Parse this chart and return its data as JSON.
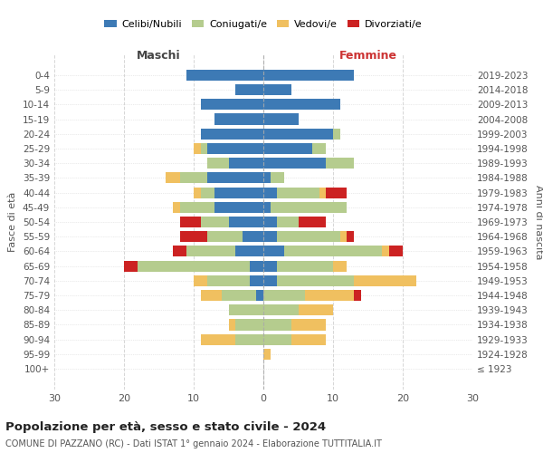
{
  "age_groups": [
    "100+",
    "95-99",
    "90-94",
    "85-89",
    "80-84",
    "75-79",
    "70-74",
    "65-69",
    "60-64",
    "55-59",
    "50-54",
    "45-49",
    "40-44",
    "35-39",
    "30-34",
    "25-29",
    "20-24",
    "15-19",
    "10-14",
    "5-9",
    "0-4"
  ],
  "birth_years": [
    "≤ 1923",
    "1924-1928",
    "1929-1933",
    "1934-1938",
    "1939-1943",
    "1944-1948",
    "1949-1953",
    "1954-1958",
    "1959-1963",
    "1964-1968",
    "1969-1973",
    "1974-1978",
    "1979-1983",
    "1984-1988",
    "1989-1993",
    "1994-1998",
    "1999-2003",
    "2004-2008",
    "2009-2013",
    "2014-2018",
    "2019-2023"
  ],
  "male": {
    "celibi": [
      0,
      0,
      0,
      0,
      0,
      1,
      2,
      2,
      4,
      3,
      5,
      7,
      7,
      8,
      5,
      8,
      9,
      7,
      9,
      4,
      11
    ],
    "coniugati": [
      0,
      0,
      4,
      4,
      5,
      5,
      6,
      16,
      7,
      5,
      4,
      5,
      2,
      4,
      3,
      1,
      0,
      0,
      0,
      0,
      0
    ],
    "vedovi": [
      0,
      0,
      5,
      1,
      0,
      3,
      2,
      0,
      0,
      0,
      0,
      1,
      1,
      2,
      0,
      1,
      0,
      0,
      0,
      0,
      0
    ],
    "divorziati": [
      0,
      0,
      0,
      0,
      0,
      0,
      0,
      2,
      2,
      4,
      3,
      0,
      0,
      0,
      0,
      0,
      0,
      0,
      0,
      0,
      0
    ]
  },
  "female": {
    "nubili": [
      0,
      0,
      0,
      0,
      0,
      0,
      2,
      2,
      3,
      2,
      2,
      1,
      2,
      1,
      9,
      7,
      10,
      5,
      11,
      4,
      13
    ],
    "coniugate": [
      0,
      0,
      4,
      4,
      5,
      6,
      11,
      8,
      14,
      9,
      3,
      11,
      6,
      2,
      4,
      2,
      1,
      0,
      0,
      0,
      0
    ],
    "vedove": [
      0,
      1,
      5,
      5,
      5,
      7,
      9,
      2,
      1,
      1,
      0,
      0,
      1,
      0,
      0,
      0,
      0,
      0,
      0,
      0,
      0
    ],
    "divorziate": [
      0,
      0,
      0,
      0,
      0,
      1,
      0,
      0,
      2,
      1,
      4,
      0,
      3,
      0,
      0,
      0,
      0,
      0,
      0,
      0,
      0
    ]
  },
  "colors": {
    "celibi": "#3d7ab5",
    "coniugati": "#b5cc8e",
    "vedovi": "#f0c060",
    "divorziati": "#cc2222"
  },
  "legend_labels": [
    "Celibi/Nubili",
    "Coniugati/e",
    "Vedovi/e",
    "Divorziati/e"
  ],
  "xlim": 30,
  "title": "Popolazione per età, sesso e stato civile - 2024",
  "subtitle": "COMUNE DI PAZZANO (RC) - Dati ISTAT 1° gennaio 2024 - Elaborazione TUTTITALIA.IT",
  "ylabel_left": "Fasce di età",
  "ylabel_right": "Anni di nascita",
  "xlabel_left": "Maschi",
  "xlabel_right": "Femmine"
}
